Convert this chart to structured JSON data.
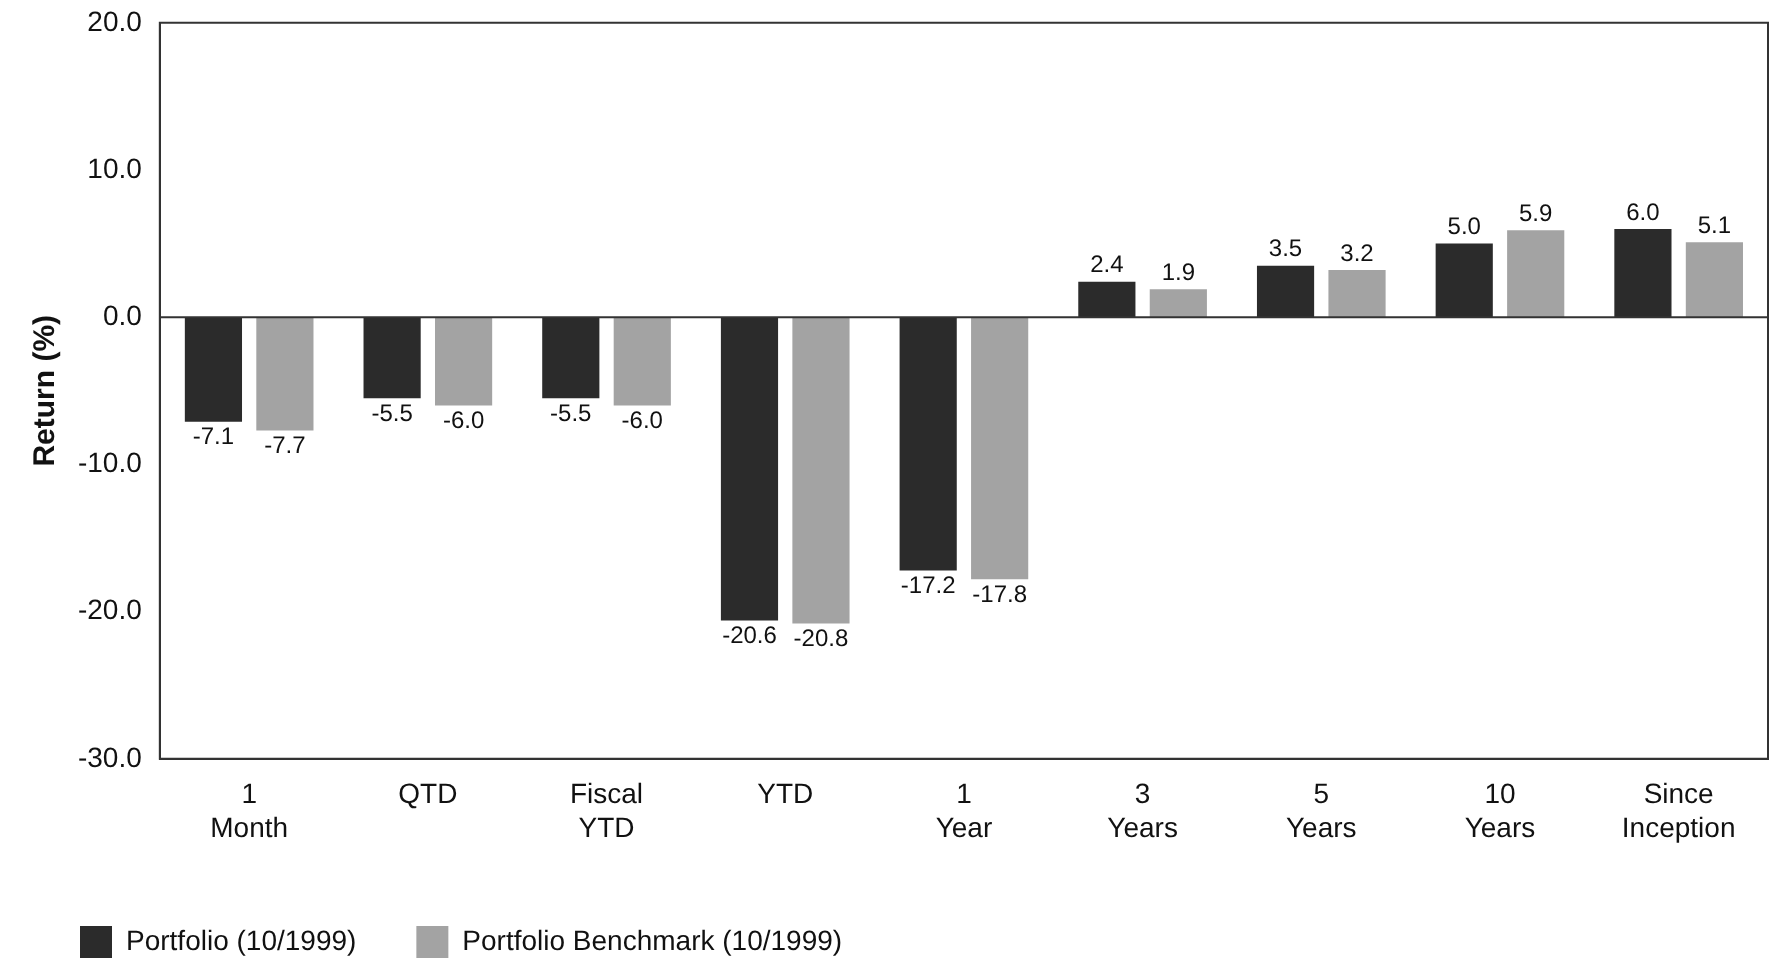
{
  "chart_data": {
    "type": "bar",
    "ylabel": "Return (%)",
    "categories": [
      "1 Month",
      "QTD",
      "Fiscal YTD",
      "YTD",
      "1 Year",
      "3 Years",
      "5 Years",
      "10 Years",
      "Since Inception"
    ],
    "series": [
      {
        "name": "Portfolio (10/1999)",
        "color": "#2b2b2b",
        "values": [
          -7.1,
          -5.5,
          -5.5,
          -20.6,
          -17.2,
          2.4,
          3.5,
          5.0,
          6.0
        ],
        "value_labels": [
          "-7.1",
          "-5.5",
          "-5.5",
          "-20.6",
          "-17.2",
          "2.4",
          "3.5",
          "5.0",
          "6.0"
        ]
      },
      {
        "name": "Portfolio Benchmark (10/1999)",
        "color": "#a3a3a3",
        "values": [
          -7.7,
          -6.0,
          -6.0,
          -20.8,
          -17.8,
          1.9,
          3.2,
          5.9,
          5.1
        ],
        "value_labels": [
          "-7.7",
          "-6.0",
          "-6.0",
          "-20.8",
          "-17.8",
          "1.9",
          "3.2",
          "5.9",
          "5.1"
        ]
      }
    ],
    "ylim": [
      -30,
      20
    ],
    "yticks": [
      {
        "value": 20,
        "label": "20.0"
      },
      {
        "value": 10,
        "label": "10.0"
      },
      {
        "value": 0,
        "label": "0.0"
      },
      {
        "value": -10,
        "label": "-10.0"
      },
      {
        "value": -20,
        "label": "-20.0"
      },
      {
        "value": -30,
        "label": "-30.0"
      }
    ],
    "ref_lines": [
      {
        "axis": "y",
        "value": 0
      }
    ],
    "grid": false,
    "legend": "bottom"
  }
}
